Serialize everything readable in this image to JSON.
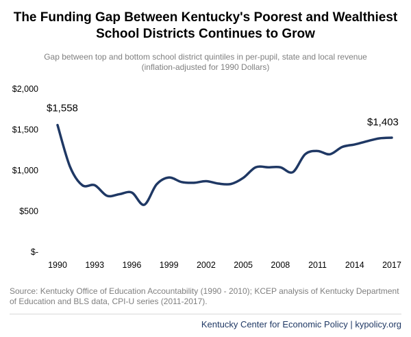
{
  "header": {
    "title_line1": "The Funding Gap Between Kentucky's Poorest and Wealthiest",
    "title_line2": "School Districts Continues to Grow",
    "subtitle_line1": "Gap between top and bottom school district quintiles in per-pupil, state and local revenue",
    "subtitle_line2": "(inflation-adjusted for 1990 Dollars)"
  },
  "chart_data": {
    "type": "line",
    "title": "The Funding Gap Between Kentucky's Poorest and Wealthiest School Districts Continues to Grow",
    "subtitle": "Gap between top and bottom school district quintiles in per-pupil, state and local revenue (inflation-adjusted for 1990 Dollars)",
    "xlabel": "",
    "ylabel": "",
    "x": [
      1990,
      1991,
      1992,
      1993,
      1994,
      1995,
      1996,
      1997,
      1998,
      1999,
      2000,
      2001,
      2002,
      2003,
      2004,
      2005,
      2006,
      2007,
      2008,
      2009,
      2010,
      2011,
      2012,
      2013,
      2014,
      2015,
      2016,
      2017
    ],
    "series": [
      {
        "values": [
          1558,
          1050,
          820,
          820,
          690,
          710,
          730,
          580,
          830,
          915,
          860,
          850,
          870,
          840,
          835,
          910,
          1040,
          1040,
          1040,
          980,
          1200,
          1240,
          1200,
          1290,
          1320,
          1360,
          1395,
          1403
        ],
        "color": "#1f3864"
      }
    ],
    "x_ticks": [
      "1990",
      "1993",
      "1996",
      "1999",
      "2002",
      "2005",
      "2008",
      "2011",
      "2014",
      "2017"
    ],
    "y_ticks": [
      "$-",
      "$500",
      "$1,000",
      "$1,500",
      "$2,000"
    ],
    "ylim": [
      0,
      2000
    ],
    "xlim": [
      1990,
      2017
    ],
    "grid": false,
    "annotations": [
      {
        "x": 1990,
        "y": 1558,
        "text": "$1,558"
      },
      {
        "x": 2017,
        "y": 1403,
        "text": "$1,403"
      }
    ]
  },
  "footer": {
    "source_text": "Source: Kentucky Office of Education Accountability (1990 - 2010); KCEP analysis of Kentucky Department of Education and BLS data, CPI-U series (2011-2017).",
    "credit": "Kentucky Center for Economic Policy | kypolicy.org"
  }
}
